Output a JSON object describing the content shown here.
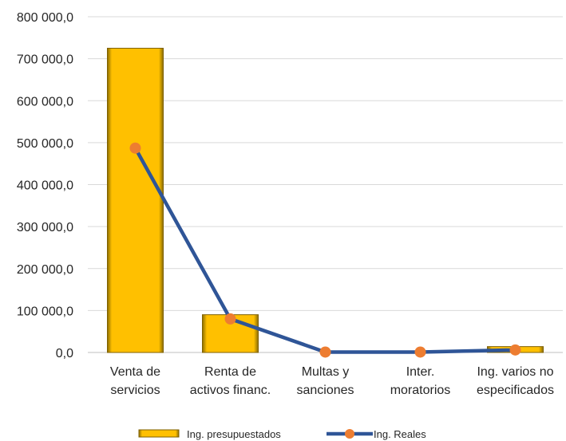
{
  "chart_data": {
    "type": "bar",
    "categories": [
      [
        "Venta de",
        "servicios"
      ],
      [
        "Renta de",
        "activos financ."
      ],
      [
        "Multas y",
        "sanciones"
      ],
      [
        "Inter.",
        "moratorios"
      ],
      [
        "Ing. varios no",
        "especificados"
      ]
    ],
    "series": [
      {
        "name": "Ing. presupuestados",
        "type": "bar",
        "color": "#FFC000",
        "values": [
          725000,
          90000,
          0,
          0,
          14000
        ]
      },
      {
        "name": "Ing. Reales",
        "type": "line",
        "color": "#2F5597",
        "marker_color": "#ED7D31",
        "values": [
          487000,
          80000,
          1000,
          1000,
          6000
        ]
      }
    ],
    "yticks": [
      "0,0",
      "100 000,0",
      "200 000,0",
      "300 000,0",
      "400 000,0",
      "500 000,0",
      "600 000,0",
      "700 000,0",
      "800 000,0"
    ],
    "ylim": [
      0,
      800000
    ],
    "grid": true,
    "legend": "bottom"
  }
}
